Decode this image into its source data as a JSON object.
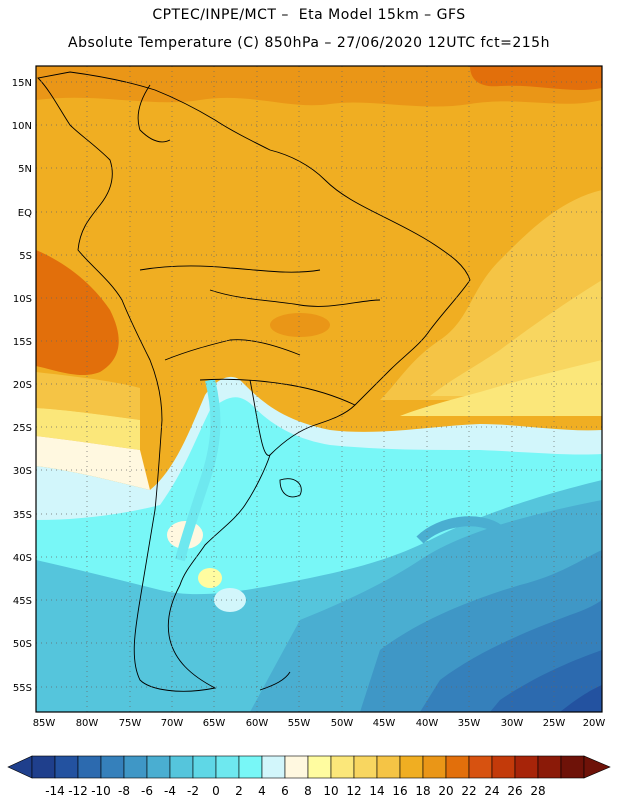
{
  "header": {
    "line1": "CPTEC/INPE/MCT –  Eta Model 15km – GFS",
    "line2": "Absolute Temperature (C) 850hPa – 27/06/2020 12UTC fct=215h"
  },
  "map": {
    "lat_labels": [
      "15N",
      "10N",
      "5N",
      "EQ",
      "5S",
      "10S",
      "15S",
      "20S",
      "25S",
      "30S",
      "35S",
      "40S",
      "45S",
      "50S",
      "55S"
    ],
    "lon_labels": [
      "85W",
      "80W",
      "75W",
      "70W",
      "65W",
      "60W",
      "55W",
      "50W",
      "45W",
      "40W",
      "35W",
      "30W",
      "25W",
      "20W"
    ]
  },
  "colorbar": {
    "ticks": [
      "-14",
      "-12",
      "-10",
      "-8",
      "-6",
      "-4",
      "-2",
      "0",
      "2",
      "4",
      "6",
      "8",
      "10",
      "12",
      "14",
      "16",
      "18",
      "20",
      "22",
      "24",
      "26",
      "28"
    ],
    "colors": [
      "#1f3f8c",
      "#2352a0",
      "#2c6aaf",
      "#3580bb",
      "#3f97c6",
      "#4aaed1",
      "#55c5dc",
      "#5fd7e6",
      "#6ee8ef",
      "#78f7f7",
      "#d2f6fb",
      "#fff8e0",
      "#fffca0",
      "#fbe77a",
      "#f8d660",
      "#f5c445",
      "#f0ae22",
      "#ea9617",
      "#e26f0b",
      "#d75210",
      "#c33a0a",
      "#a72409",
      "#8b1a08",
      "#6e1208"
    ]
  }
}
